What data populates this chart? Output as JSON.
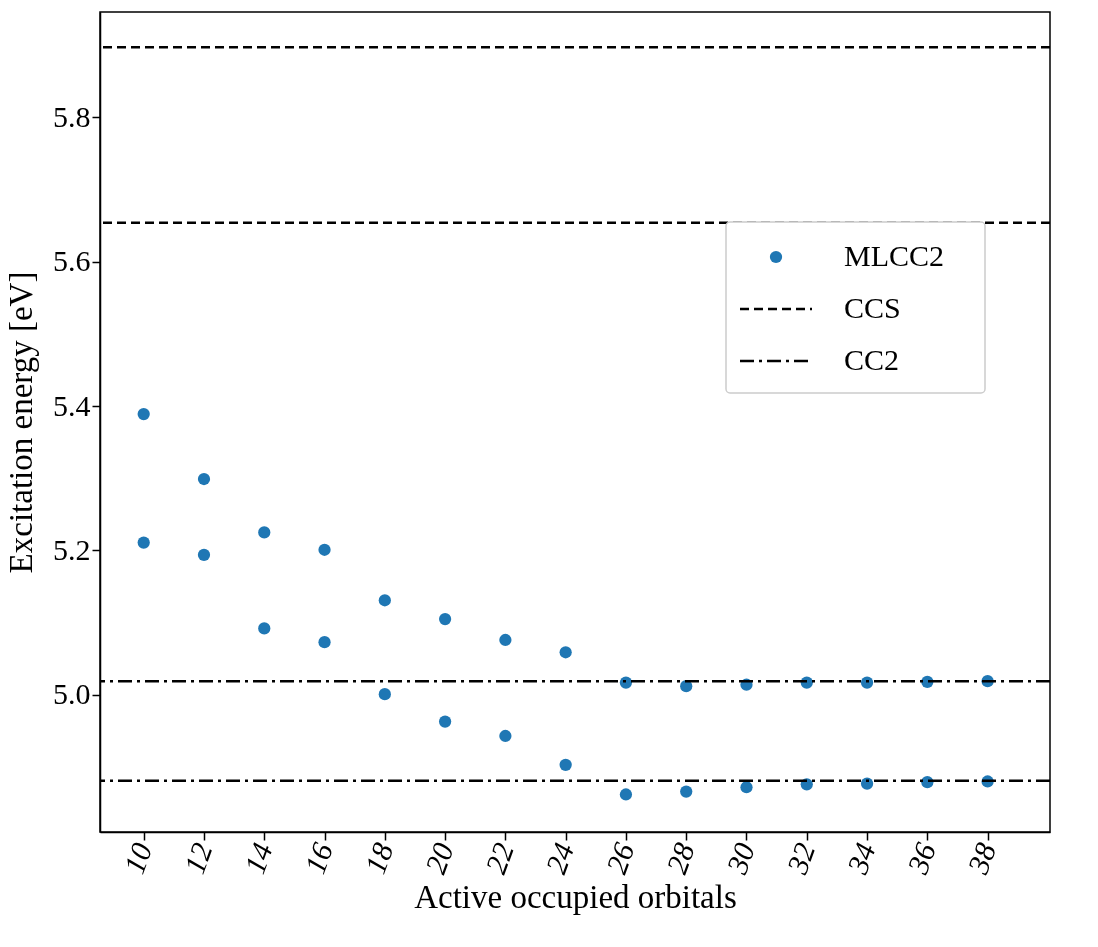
{
  "chart_data": {
    "type": "scatter",
    "xlabel": "Active occupied orbitals",
    "ylabel": "Excitation energy [eV]",
    "xlim": [
      8.55,
      40.07
    ],
    "xticks": [
      10,
      12,
      14,
      16,
      18,
      20,
      22,
      24,
      26,
      28,
      30,
      32,
      34,
      36,
      38
    ],
    "ylim": [
      4.81,
      5.946
    ],
    "yticks": [
      {
        "value": 5.0,
        "label": "5.0"
      },
      {
        "value": 5.2,
        "label": "5.2"
      },
      {
        "value": 5.4,
        "label": "5.4"
      },
      {
        "value": 5.6,
        "label": "5.6"
      },
      {
        "value": 5.8,
        "label": "5.8"
      }
    ],
    "marker": "circle",
    "legend": "right",
    "grid": false,
    "series": [
      {
        "name": "MLCC2",
        "color": "#1f77b4",
        "x": [
          10,
          12,
          14,
          16,
          18,
          20,
          22,
          24,
          26,
          28,
          30,
          32,
          34,
          36,
          38,
          10,
          12,
          14,
          16,
          18,
          20,
          22,
          24,
          26,
          28,
          30,
          32,
          34,
          36,
          38
        ],
        "values": [
          5.389,
          5.299,
          5.225,
          5.201,
          5.131,
          5.105,
          5.076,
          5.059,
          5.017,
          5.012,
          5.014,
          5.017,
          5.017,
          5.018,
          5.019,
          5.211,
          5.194,
          5.092,
          5.073,
          5.001,
          4.963,
          4.943,
          4.903,
          4.862,
          4.866,
          4.872,
          4.876,
          4.877,
          4.879,
          4.88
        ]
      }
    ],
    "ref_lines": [
      {
        "axis": "y",
        "value": 5.897,
        "label": "CCS",
        "line_style": "dashed",
        "color": "#000000"
      },
      {
        "axis": "y",
        "value": 5.654,
        "line_style": "dashed",
        "color": "#000000"
      },
      {
        "axis": "y",
        "value": 5.019,
        "label": "CC2",
        "line_style": "dashdot",
        "color": "#000000"
      },
      {
        "axis": "y",
        "value": 4.881,
        "line_style": "dashdot",
        "color": "#000000"
      }
    ]
  }
}
